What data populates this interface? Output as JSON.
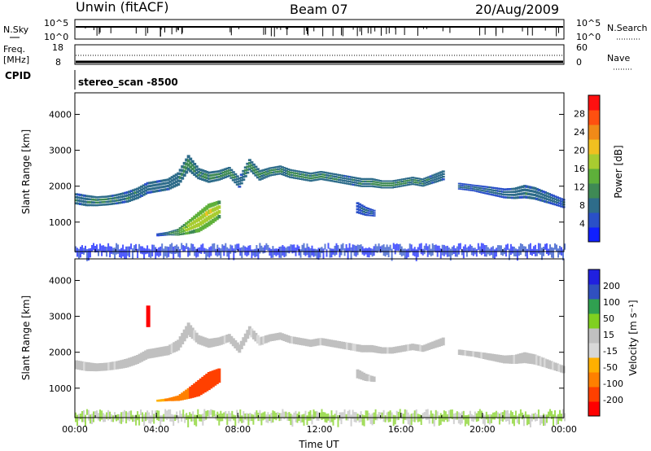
{
  "header": {
    "station": "Unwin (fitACF)",
    "beam": "Beam 07",
    "date": "20/Aug/2009"
  },
  "noise_panel": {
    "left_label": "N.Sky",
    "left_ticks": [
      "10^5",
      "10^0"
    ],
    "right_label": "N.Search",
    "right_ticks": [
      "10^5",
      "10^0"
    ]
  },
  "freq_panel": {
    "left_label_line1": "Freq.",
    "left_label_line2": "[MHz]",
    "left_ticks": [
      "18",
      "8"
    ],
    "right_label": "Nave",
    "right_ticks": [
      "60",
      "0"
    ]
  },
  "cpid": {
    "label": "CPID",
    "value": "stereo_scan -8500"
  },
  "colors": {
    "power": [
      "#1020ff",
      "#2a50c8",
      "#2e6c8a",
      "#3f8a55",
      "#5eb03a",
      "#a8cc30",
      "#f0c020",
      "#f08a18",
      "#ff5010",
      "#ff1010"
    ],
    "velocity": [
      "#ff0000",
      "#ff4000",
      "#ff8000",
      "#ffb000",
      "#d8d8d8",
      "#c0c0c0",
      "#80d020",
      "#30a050",
      "#3050c0",
      "#2020e0"
    ],
    "ground_scatter": "#a0a0a0"
  },
  "chart_data": [
    {
      "type": "heatmap",
      "name": "power",
      "xlabel": "",
      "ylabel": "Slant Range [km]",
      "xlim": [
        0,
        24
      ],
      "ylim": [
        180,
        4600
      ],
      "yticks": [
        "1000",
        "2000",
        "3000",
        "4000"
      ],
      "colorbar": {
        "label": "Power [dB]",
        "ticks": [
          "4",
          "8",
          "12",
          "16",
          "20",
          "24",
          "28"
        ],
        "range": [
          0,
          32
        ]
      },
      "bands": [
        {
          "x": [
            0.0,
            0.5,
            1.0,
            1.5,
            2.0,
            2.5,
            3.0,
            3.5,
            4.0,
            4.5,
            5.0,
            5.5,
            6.0,
            6.5,
            7.0,
            7.5,
            8.0,
            8.5,
            9.0,
            9.5,
            10.0,
            10.5,
            11.0,
            11.5,
            12.0,
            12.5,
            13.0,
            13.5,
            14.0,
            14.5,
            15.0,
            15.5,
            16.0,
            16.5,
            17.0,
            17.5,
            18.0
          ],
          "center": [
            1650,
            1600,
            1580,
            1600,
            1640,
            1700,
            1800,
            1950,
            2000,
            2050,
            2200,
            2650,
            2350,
            2250,
            2300,
            2400,
            2100,
            2600,
            2300,
            2400,
            2450,
            2350,
            2300,
            2250,
            2300,
            2250,
            2200,
            2150,
            2100,
            2100,
            2050,
            2050,
            2100,
            2150,
            2100,
            2200,
            2300
          ],
          "width": [
            250,
            250,
            220,
            220,
            230,
            250,
            250,
            260,
            260,
            260,
            300,
            350,
            250,
            250,
            230,
            220,
            230,
            250,
            230,
            200,
            200,
            200,
            200,
            200,
            200,
            200,
            200,
            200,
            200,
            200,
            180,
            180,
            180,
            180,
            180,
            200,
            220
          ],
          "power": [
            8,
            8,
            9,
            9,
            8,
            8,
            8,
            7,
            8,
            8,
            8,
            10,
            9,
            9,
            9,
            10,
            8,
            10,
            9,
            9,
            9,
            9,
            9,
            9,
            9,
            9,
            8,
            8,
            9,
            9,
            10,
            10,
            9,
            9,
            9,
            8,
            8
          ]
        },
        {
          "x": [
            18.8,
            19.5,
            20.0,
            20.5,
            21.0,
            21.5,
            22.0,
            22.5,
            23.0,
            23.5,
            24.0
          ],
          "center": [
            2000,
            1950,
            1900,
            1850,
            1800,
            1800,
            1850,
            1800,
            1700,
            1600,
            1500
          ],
          "width": [
            150,
            150,
            180,
            200,
            220,
            250,
            300,
            280,
            250,
            220,
            200
          ],
          "power": [
            6,
            6,
            6,
            6,
            6,
            7,
            8,
            8,
            7,
            6,
            6
          ]
        },
        {
          "x": [
            4.0,
            4.5,
            5.0,
            5.5,
            6.0,
            6.5,
            7.0
          ],
          "center": [
            650,
            680,
            720,
            850,
            1000,
            1200,
            1350
          ],
          "width": [
            60,
            80,
            150,
            300,
            450,
            500,
            400
          ],
          "power": [
            4,
            8,
            12,
            16,
            17,
            18,
            16
          ]
        },
        {
          "x": [
            13.8,
            14.2,
            14.6
          ],
          "center": [
            1400,
            1300,
            1250
          ],
          "width": [
            250,
            200,
            150
          ],
          "power": [
            5,
            6,
            5
          ]
        }
      ]
    },
    {
      "type": "heatmap",
      "name": "velocity",
      "xlabel": "Time UT",
      "ylabel": "Slant Range [km]",
      "xlim": [
        0,
        24
      ],
      "ylim": [
        180,
        4600
      ],
      "xticks": [
        "00:00",
        "04:00",
        "08:00",
        "12:00",
        "16:00",
        "20:00",
        "00:00"
      ],
      "yticks": [
        "1000",
        "2000",
        "3000",
        "4000"
      ],
      "colorbar": {
        "label": "Velocity [m s⁻¹]",
        "ticks": [
          "200",
          "100",
          "50",
          "15",
          "-15",
          "-50",
          "-100",
          "-200"
        ]
      },
      "bands": [
        {
          "x": [
            0.0,
            3.0,
            5.5,
            6.5,
            8.5,
            12.0,
            16.0,
            18.0
          ],
          "velocity": [
            0,
            0,
            0,
            0,
            0,
            0,
            0,
            0
          ],
          "note_class": "ground_scatter"
        },
        {
          "x": [
            4.0,
            5.0,
            6.0,
            7.0
          ],
          "velocity": [
            -50,
            -80,
            -120,
            -150
          ]
        }
      ]
    }
  ]
}
